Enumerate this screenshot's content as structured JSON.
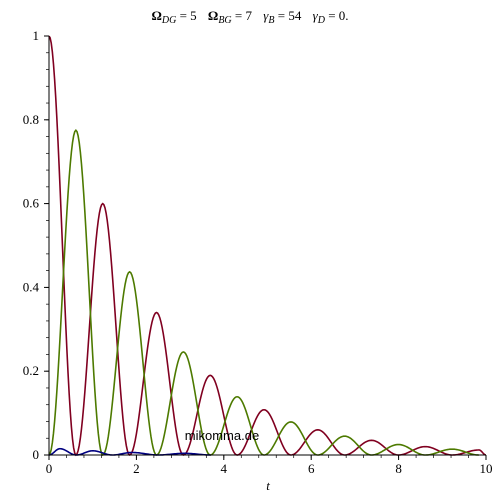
{
  "chart_data": {
    "type": "line",
    "title": "Ω_DG = 5   Ω_BG = 7   γ_B = 54   γ_D = 0.",
    "title_parts": {
      "omega_dg_sym": "Ω",
      "omega_dg_sub": "DG",
      "omega_dg_val": " = 5",
      "omega_bg_sym": "Ω",
      "omega_bg_sub": "BG",
      "omega_bg_val": " = 7",
      "gamma_b_sym": "γ",
      "gamma_b_sub": "B",
      "gamma_b_val": " = 54",
      "gamma_d_sym": "γ",
      "gamma_d_sub": "D",
      "gamma_d_val": " = 0."
    },
    "xlabel": "t",
    "ylabel": "",
    "xlim": [
      0,
      10
    ],
    "ylim": [
      0,
      1
    ],
    "x_ticks": [
      "0",
      "2",
      "4",
      "6",
      "8",
      "10"
    ],
    "y_ticks": [
      "0",
      "0.2",
      "0.4",
      "0.6",
      "0.8",
      "1"
    ],
    "x_tick_values": [
      0,
      2,
      4,
      6,
      8,
      10
    ],
    "y_tick_values": [
      0,
      0.2,
      0.4,
      0.6,
      0.8,
      1
    ],
    "grid": false,
    "watermark": "mikomma.de",
    "series": [
      {
        "color": "#800020",
        "peaks": [
          [
            0,
            1
          ],
          [
            1.23,
            0.6
          ],
          [
            2.46,
            0.34
          ],
          [
            3.69,
            0.19
          ],
          [
            4.92,
            0.108
          ],
          [
            6.15,
            0.06
          ],
          [
            7.38,
            0.035
          ],
          [
            8.61,
            0.02
          ],
          [
            9.84,
            0.012
          ]
        ]
      },
      {
        "color": "#4d7a00",
        "peaks": [
          [
            0.615,
            0.775
          ],
          [
            1.845,
            0.437
          ],
          [
            3.075,
            0.246
          ],
          [
            4.305,
            0.139
          ],
          [
            5.535,
            0.079
          ],
          [
            6.765,
            0.045
          ],
          [
            7.995,
            0.025
          ],
          [
            9.225,
            0.014
          ]
        ]
      },
      {
        "color": "#000080",
        "peaks": [
          [
            0.25,
            0.015
          ],
          [
            1.0,
            0.01
          ],
          [
            1.9,
            0.006
          ],
          [
            3.1,
            0.004
          ]
        ]
      }
    ]
  }
}
